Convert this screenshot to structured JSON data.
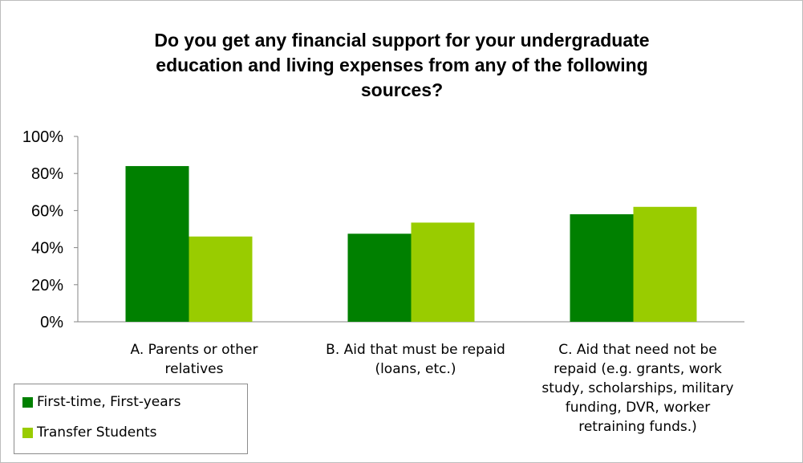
{
  "chart_data": {
    "type": "bar",
    "title": "Do you get any financial support for your undergraduate\neducation and living expenses from any of the following\nsources?",
    "categories": [
      "A. Parents or other\nrelatives",
      "B. Aid that must be repaid\n(loans, etc.)",
      "C. Aid that need not be\nrepaid (e.g. grants, work\nstudy, scholarships, military\nfunding, DVR, worker\nretraining funds.)"
    ],
    "series": [
      {
        "name": "First-time, First-years",
        "color": "#008000",
        "values": [
          84,
          47.5,
          58
        ]
      },
      {
        "name": "Transfer Students",
        "color": "#99cc00",
        "values": [
          46,
          53.5,
          62
        ]
      }
    ],
    "y_ticks": [
      "0%",
      "20%",
      "40%",
      "60%",
      "80%",
      "100%"
    ],
    "ylim": [
      0,
      100
    ],
    "xlabel": "",
    "ylabel": "",
    "grid": false,
    "legend_position": "bottom-left"
  }
}
